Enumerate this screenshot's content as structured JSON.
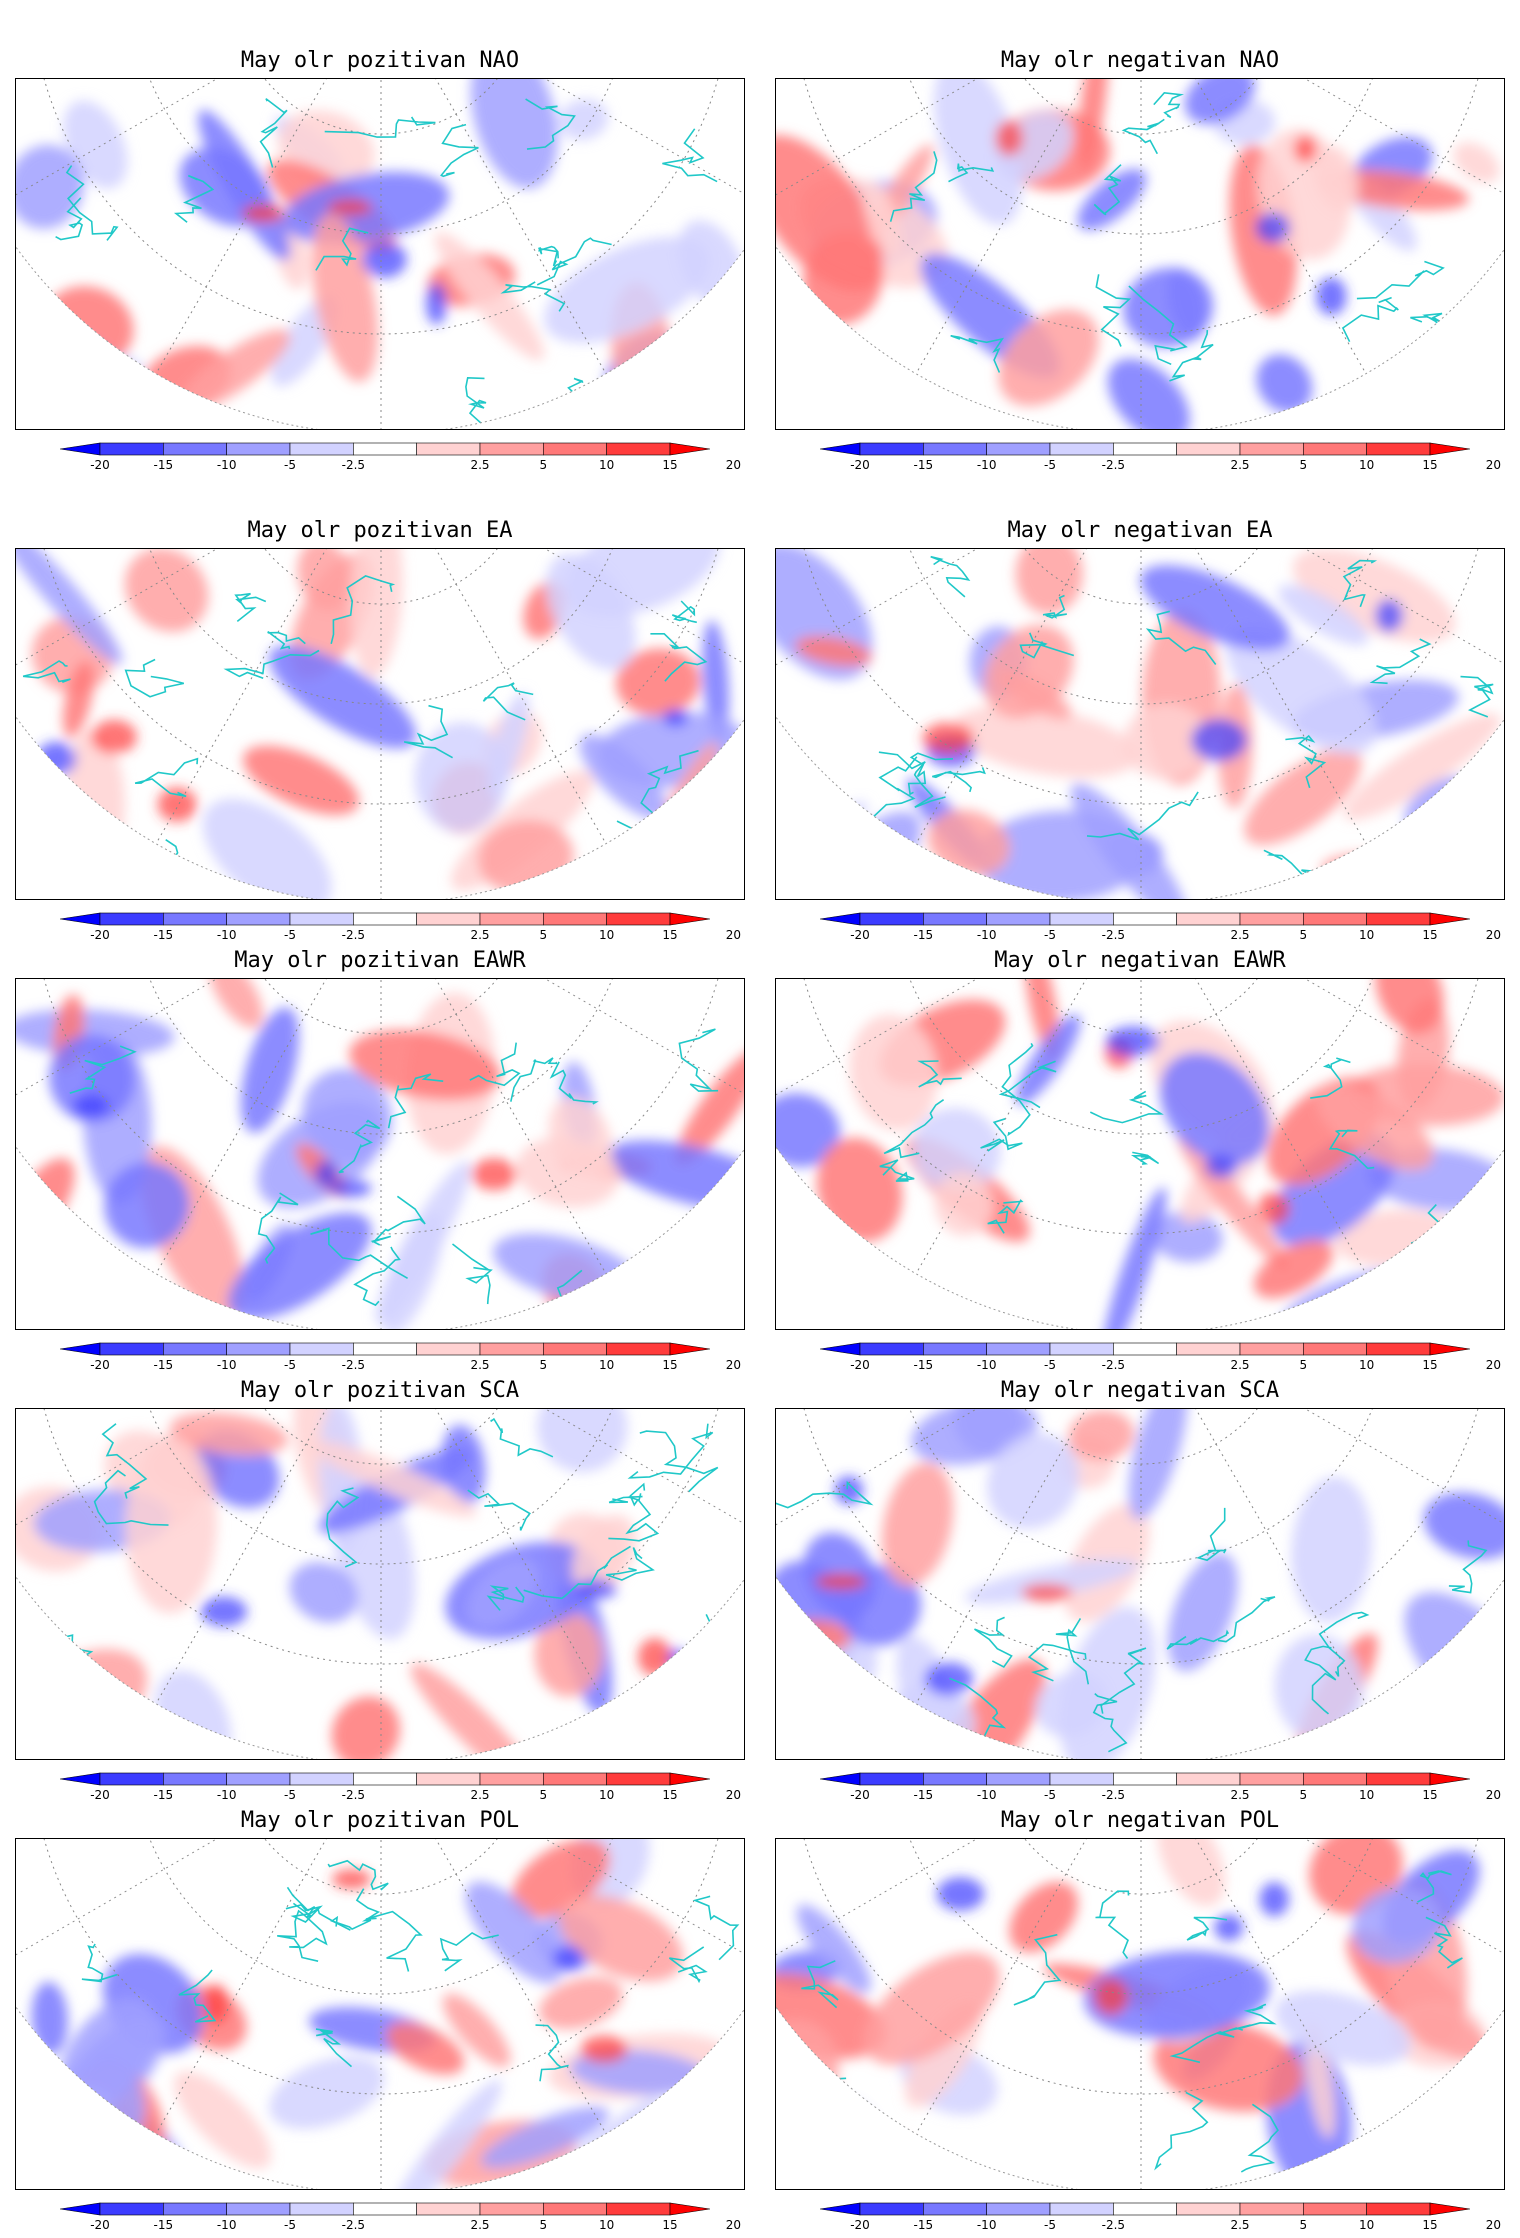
{
  "panels": [
    {
      "title": "May olr pozitivan NAO"
    },
    {
      "title": "May olr negativan NAO"
    },
    {
      "title": "May olr pozitivan EA"
    },
    {
      "title": "May olr negativan EA"
    },
    {
      "title": "May olr pozitivan EAWR"
    },
    {
      "title": "May olr negativan EAWR"
    },
    {
      "title": "May olr pozitivan SCA"
    },
    {
      "title": "May olr negativan SCA"
    },
    {
      "title": "May olr pozitivan POL"
    },
    {
      "title": "May olr negativan POL"
    }
  ],
  "colorbar": {
    "tick_labels": [
      "-20",
      "-15",
      "-10",
      "-5",
      "-2.5",
      "2.5",
      "5",
      "10",
      "15",
      "20"
    ],
    "colors": [
      "#0000ff",
      "#3c3cff",
      "#7878ff",
      "#a0a0ff",
      "#d2d2ff",
      "#ffffff",
      "#ffd2d2",
      "#ffa0a0",
      "#ff7878",
      "#ff3c3c",
      "#ff0000"
    ]
  },
  "coastline_color": "#20c8c8"
}
